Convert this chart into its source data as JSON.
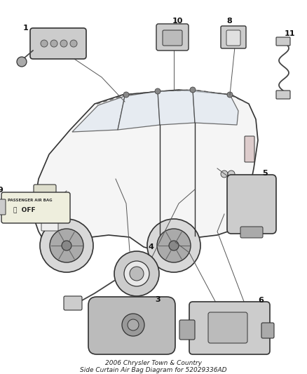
{
  "title_line1": "2006 Chrysler Town & Country",
  "title_line2": "Side Curtain Air Bag Diagram for 52029336AD",
  "bg_color": "#ffffff",
  "figure_width": 4.38,
  "figure_height": 5.33,
  "dpi": 100,
  "label_fontsize": 8,
  "label_color": "#000000",
  "line_color": "#444444",
  "component_fill": "#cccccc",
  "component_edge": "#333333",
  "car_edge": "#444444",
  "window_fill": "#e0e8f0",
  "title_fontsize": 6.5
}
